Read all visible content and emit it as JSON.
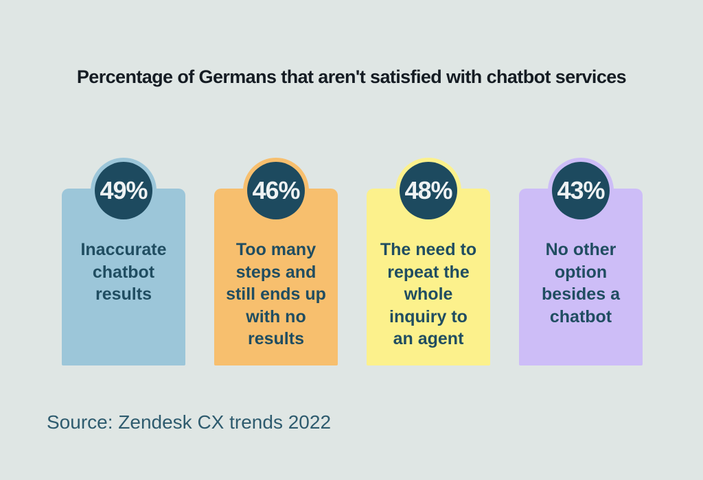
{
  "page": {
    "background": "#dfe6e4"
  },
  "title": "Percentage of Germans that aren't satisfied with chatbot services",
  "source_note": "Source: Zendesk CX trends 2022",
  "colors": {
    "background": "#dfe6e4",
    "circle": "#1d4a5f",
    "percent_text": "#eef2f3",
    "label_text": "#204d61",
    "title_text": "#151c23",
    "source_text": "#2e5b6e"
  },
  "cards": [
    {
      "percent": "49%",
      "label": "Inaccurate\nchatbot\nresults",
      "color": "#9cc6d9"
    },
    {
      "percent": "46%",
      "label": "Too many\nsteps and\nstill ends up\nwith no\nresults",
      "color": "#f7bf6e"
    },
    {
      "percent": "48%",
      "label": "The need to\nrepeat the\nwhole\ninquiry to\nan agent",
      "color": "#fcf18c"
    },
    {
      "percent": "43%",
      "label": "No other\noption\nbesides a\nchatbot",
      "color": "#cdbdf7"
    }
  ],
  "chart_data": {
    "type": "bar",
    "title": "Percentage of Germans that aren't satisfied with chatbot services",
    "categories": [
      "Inaccurate chatbot results",
      "Too many steps and still ends up with no results",
      "The need to repeat the whole inquiry to an agent",
      "No other option besides a chatbot"
    ],
    "values": [
      49,
      46,
      48,
      43
    ],
    "unit": "%",
    "legend": false,
    "grid": false,
    "source": "Source: Zendesk CX trends 2022"
  }
}
